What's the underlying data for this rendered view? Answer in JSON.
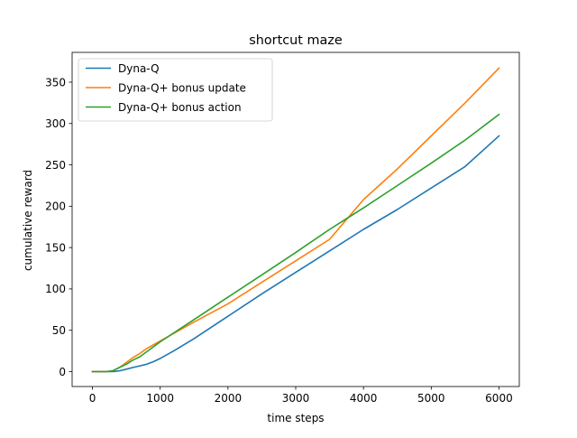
{
  "chart_data": {
    "type": "line",
    "title": "shortcut maze",
    "xlabel": "time steps",
    "ylabel": "cumulative reward",
    "xlim": [
      -300,
      6300
    ],
    "ylim": [
      -18,
      386
    ],
    "xticks": [
      0,
      1000,
      2000,
      3000,
      4000,
      5000,
      6000
    ],
    "yticks": [
      0,
      50,
      100,
      150,
      200,
      250,
      300,
      350
    ],
    "grid": false,
    "legend": "top-left",
    "series": [
      {
        "name": "Dyna-Q",
        "color": "#1f77b4",
        "x": [
          0,
          200,
          300,
          400,
          500,
          600,
          700,
          800,
          900,
          1000,
          1200,
          1500,
          2000,
          2500,
          3000,
          3500,
          4000,
          4500,
          5000,
          5500,
          6000
        ],
        "y": [
          0,
          0,
          0,
          1,
          3,
          5,
          7,
          9,
          12,
          16,
          25,
          40,
          67,
          94,
          120,
          146,
          172,
          196,
          222,
          248,
          285
        ]
      },
      {
        "name": "Dyna-Q+ bonus update",
        "color": "#ff7f0e",
        "x": [
          0,
          200,
          300,
          400,
          500,
          600,
          700,
          800,
          1000,
          1500,
          2000,
          2500,
          3000,
          3500,
          4000,
          4500,
          5000,
          5500,
          6000
        ],
        "y": [
          0,
          0,
          1,
          5,
          11,
          17,
          22,
          28,
          37,
          60,
          82,
          108,
          134,
          160,
          208,
          245,
          285,
          325,
          367
        ]
      },
      {
        "name": "Dyna-Q+ bonus action",
        "color": "#2ca02c",
        "x": [
          0,
          200,
          300,
          400,
          500,
          600,
          700,
          800,
          1000,
          1500,
          2000,
          2500,
          3000,
          3500,
          4000,
          4500,
          5000,
          5500,
          6000
        ],
        "y": [
          0,
          0,
          1,
          5,
          9,
          14,
          18,
          24,
          36,
          63,
          90,
          117,
          144,
          172,
          198,
          225,
          252,
          280,
          311
        ]
      }
    ]
  }
}
